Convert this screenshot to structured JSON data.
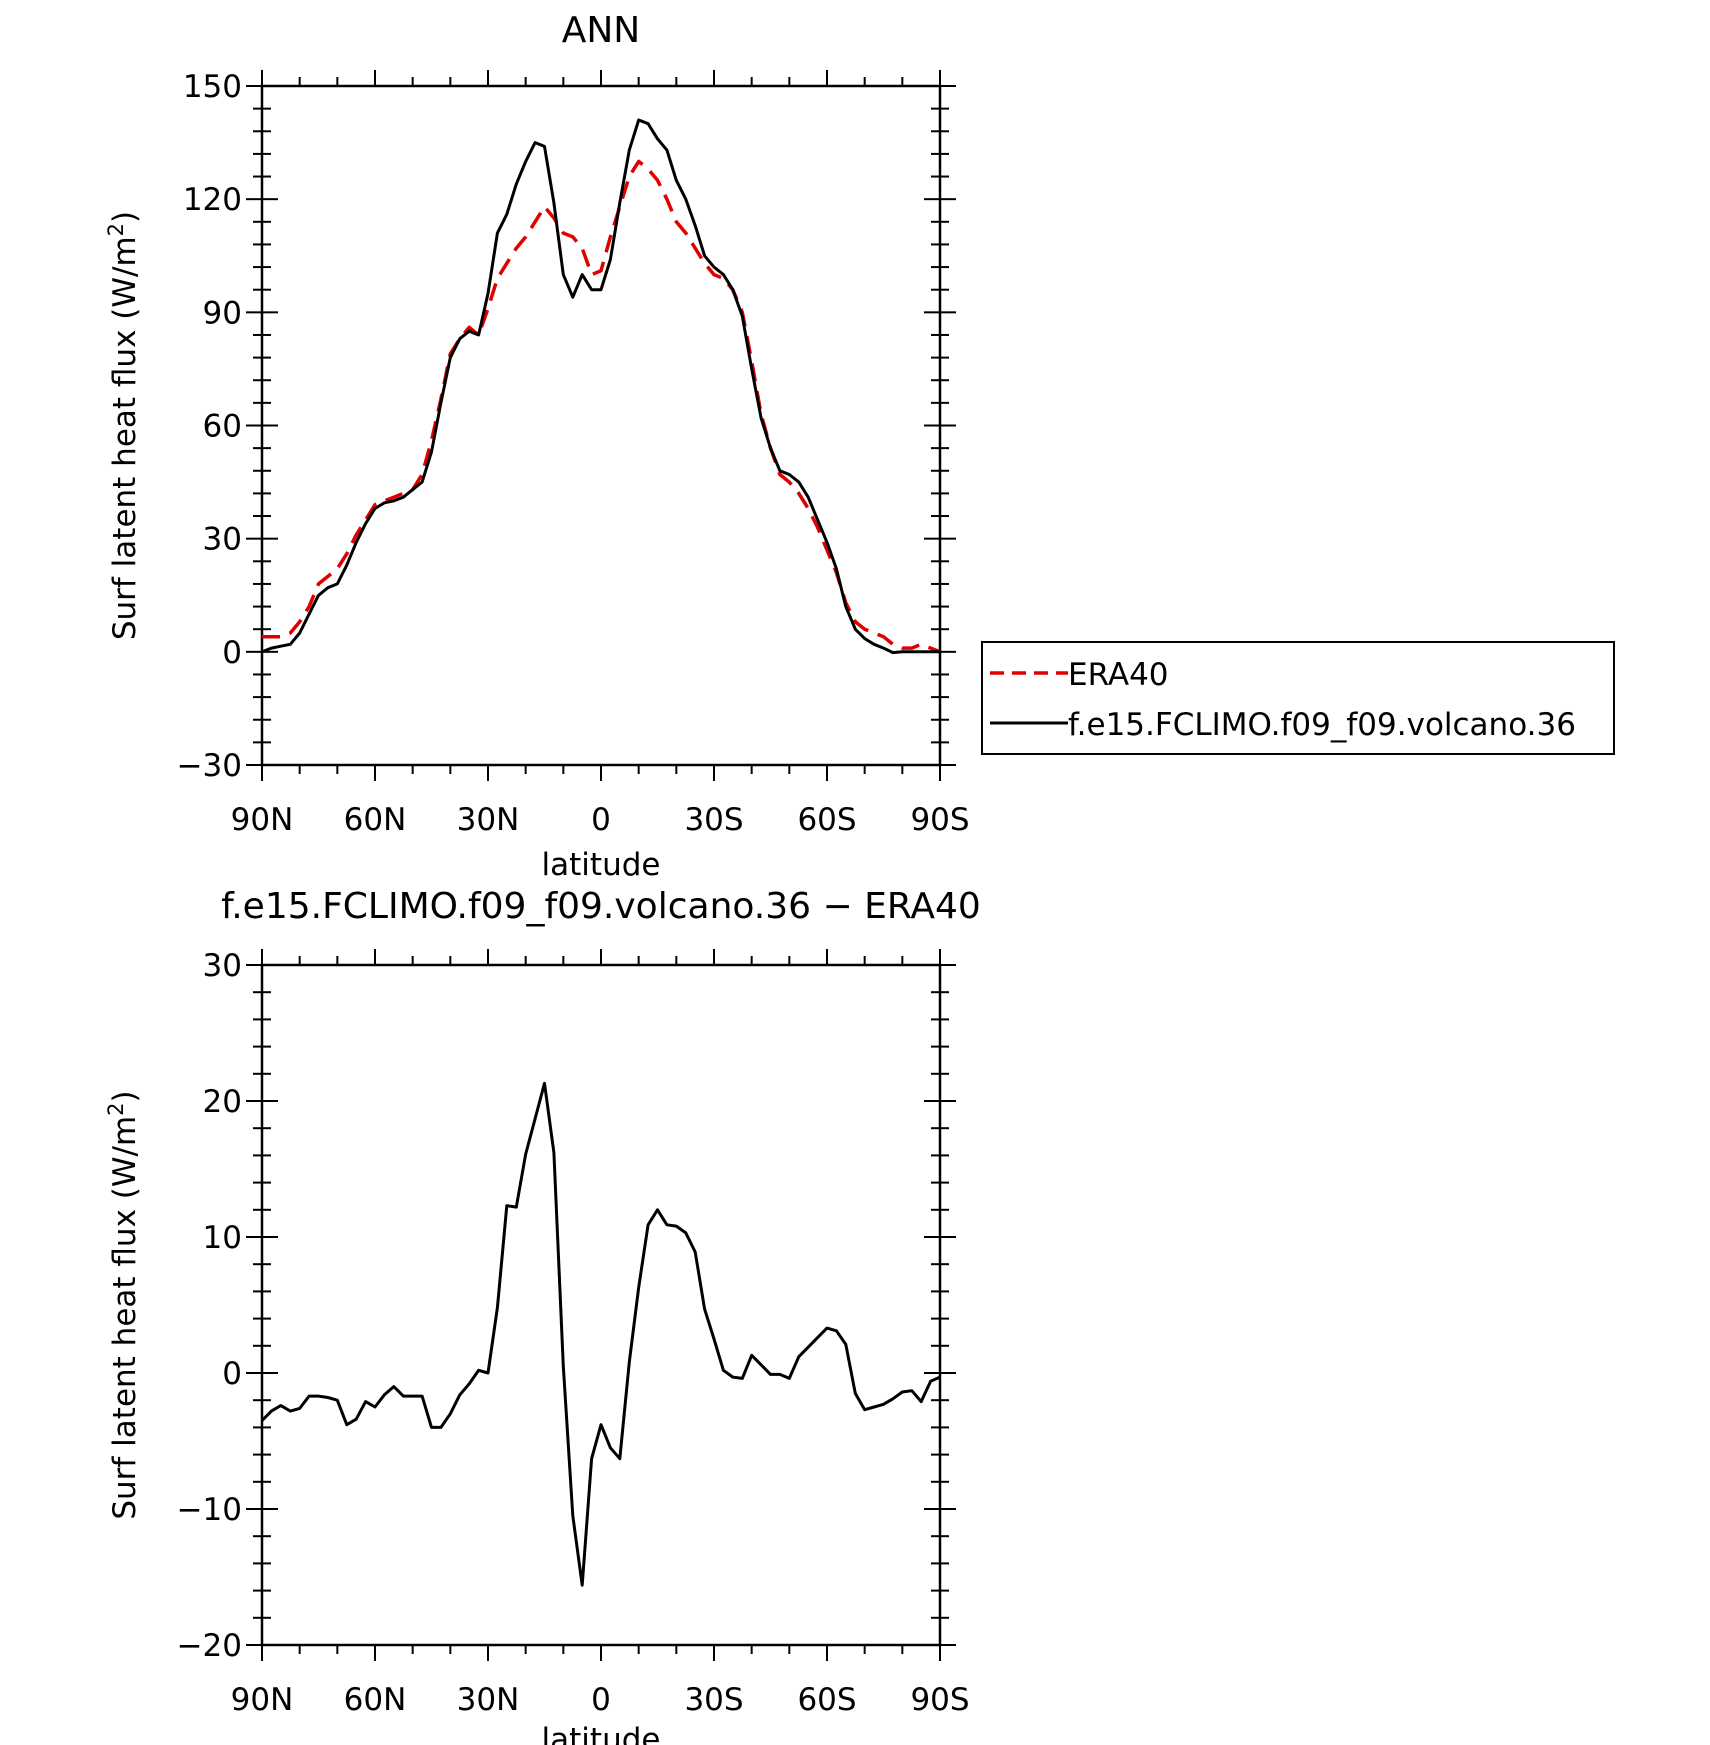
{
  "chart_data": [
    {
      "type": "line",
      "title": "ANN",
      "xlabel": "latitude",
      "ylabel": "Surf latent heat flux (W/m",
      "ylabel_sup": "2",
      "ylabel_close": ")",
      "xlim": [
        90,
        -90
      ],
      "ylim": [
        -30,
        150
      ],
      "xticks": [
        90,
        60,
        30,
        0,
        -30,
        -60,
        -90
      ],
      "xtick_labels": [
        "90N",
        "60N",
        "30N",
        "0",
        "30S",
        "60S",
        "90S"
      ],
      "yticks": [
        -30,
        0,
        30,
        60,
        90,
        120,
        150
      ],
      "ytick_labels": [
        "−30",
        "0",
        "30",
        "60",
        "90",
        "120",
        "150"
      ],
      "legend": {
        "placement": "right",
        "entries": [
          {
            "label": "ERA40",
            "color": "#e00000",
            "dash": "dashed"
          },
          {
            "label": "f.e15.FCLIMO.f09_f09.volcano.36",
            "color": "#000000",
            "dash": "solid"
          }
        ]
      },
      "series": [
        {
          "name": "ERA40",
          "color": "#e00000",
          "dash": "dashed",
          "x": [
            90,
            87.5,
            85,
            82.5,
            80,
            77.5,
            75,
            72.5,
            70,
            67.5,
            65,
            62.5,
            60,
            57.5,
            55,
            52.5,
            50,
            47.5,
            45,
            42.5,
            40,
            37.5,
            35,
            32.5,
            30,
            27.5,
            25,
            22.5,
            20,
            17.5,
            15,
            12.5,
            10,
            7.5,
            5,
            2.5,
            0,
            -2.5,
            -5,
            -7.5,
            -10,
            -12.5,
            -15,
            -17.5,
            -20,
            -22.5,
            -25,
            -27.5,
            -30,
            -32.5,
            -35,
            -37.5,
            -40,
            -42.5,
            -45,
            -47.5,
            -50,
            -52.5,
            -55,
            -57.5,
            -60,
            -62.5,
            -65,
            -67.5,
            -70,
            -72.5,
            -75,
            -77.5,
            -80,
            -82.5,
            -85,
            -87.5,
            -90
          ],
          "y": [
            4,
            4,
            4,
            5,
            8,
            12,
            18,
            20,
            22,
            26,
            31,
            35,
            39,
            40,
            41,
            42,
            43,
            47,
            56,
            67,
            79,
            83,
            86,
            84,
            91,
            99,
            103,
            107,
            110,
            114,
            118,
            115,
            111,
            110,
            107,
            100,
            101,
            110,
            118,
            126,
            130,
            128,
            125,
            120,
            114,
            111,
            107,
            103,
            100,
            99,
            96,
            90,
            77,
            63,
            54,
            47,
            45,
            42,
            38,
            33,
            27,
            21,
            13,
            8,
            6,
            5,
            4,
            2,
            1,
            1,
            2,
            1,
            0
          ]
        },
        {
          "name": "f.e15.FCLIMO.f09_f09.volcano.36",
          "color": "#000000",
          "dash": "solid",
          "x": [
            90,
            87.5,
            85,
            82.5,
            80,
            77.5,
            75,
            72.5,
            70,
            67.5,
            65,
            62.5,
            60,
            57.5,
            55,
            52.5,
            50,
            47.5,
            45,
            42.5,
            40,
            37.5,
            35,
            32.5,
            30,
            27.5,
            25,
            22.5,
            20,
            17.5,
            15,
            12.5,
            10,
            7.5,
            5,
            2.5,
            0,
            -2.5,
            -5,
            -7.5,
            -10,
            -12.5,
            -15,
            -17.5,
            -20,
            -22.5,
            -25,
            -27.5,
            -30,
            -32.5,
            -35,
            -37.5,
            -40,
            -42.5,
            -45,
            -47.5,
            -50,
            -52.5,
            -55,
            -57.5,
            -60,
            -62.5,
            -65,
            -67.5,
            -70,
            -72.5,
            -75,
            -77.5,
            -80,
            -82.5,
            -85,
            -87.5,
            -90
          ],
          "y": [
            0,
            1,
            1.5,
            2,
            5,
            10,
            15,
            17,
            18,
            23,
            29,
            34,
            38,
            39.5,
            40,
            41,
            43,
            45,
            53,
            66,
            78,
            83,
            85,
            84,
            95,
            111,
            116,
            124,
            130,
            135,
            134,
            119,
            100,
            94,
            100,
            96,
            96,
            104,
            119,
            133,
            141,
            140,
            136,
            133,
            125,
            120,
            113,
            105,
            102,
            100,
            96,
            89,
            75,
            62,
            54,
            48,
            47,
            45,
            41,
            35,
            29,
            22,
            12,
            6,
            3.5,
            2,
            1,
            -0.2,
            0,
            0,
            0,
            0,
            0
          ]
        }
      ]
    },
    {
      "type": "line",
      "title": "f.e15.FCLIMO.f09_f09.volcano.36 − ERA40",
      "xlabel": "latitude",
      "ylabel": "Surf latent heat flux (W/m",
      "ylabel_sup": "2",
      "ylabel_close": ")",
      "xlim": [
        90,
        -90
      ],
      "ylim": [
        -20,
        30
      ],
      "xticks": [
        90,
        60,
        30,
        0,
        -30,
        -60,
        -90
      ],
      "xtick_labels": [
        "90N",
        "60N",
        "30N",
        "0",
        "30S",
        "60S",
        "90S"
      ],
      "yticks": [
        -20,
        -10,
        0,
        10,
        20,
        30
      ],
      "ytick_labels": [
        "−20",
        "−10",
        "0",
        "10",
        "20",
        "30"
      ],
      "series": [
        {
          "color": "#000000",
          "dash": "solid",
          "x": [
            90,
            87.5,
            85,
            82.5,
            80,
            77.5,
            75,
            72.5,
            70,
            67.5,
            65,
            62.5,
            60,
            57.5,
            55,
            52.5,
            50,
            47.5,
            45,
            42.5,
            40,
            37.5,
            35,
            32.5,
            30,
            27.5,
            25,
            22.5,
            20,
            17.5,
            15,
            12.5,
            10,
            7.5,
            5,
            2.5,
            0,
            -2.5,
            -5,
            -7.5,
            -10,
            -12.5,
            -15,
            -17.5,
            -20,
            -22.5,
            -25,
            -27.5,
            -30,
            -32.5,
            -35,
            -37.5,
            -40,
            -42.5,
            -45,
            -47.5,
            -50,
            -52.5,
            -55,
            -57.5,
            -60,
            -62.5,
            -65,
            -67.5,
            -70,
            -72.5,
            -75,
            -77.5,
            -80,
            -82.5,
            -85,
            -87.5,
            -90
          ],
          "y": [
            -3.5,
            -2.8,
            -2.4,
            -2.8,
            -2.6,
            -1.7,
            -1.7,
            -1.8,
            -2,
            -3.8,
            -3.4,
            -2.1,
            -2.5,
            -1.6,
            -1,
            -1.7,
            -1.7,
            -1.7,
            -4,
            -4,
            -3,
            -1.6,
            -0.8,
            0.2,
            0,
            4.8,
            12.3,
            12.2,
            16.1,
            18.7,
            21.3,
            16.2,
            0.5,
            -10.5,
            -15.6,
            -6.3,
            -3.8,
            -5.5,
            -6.3,
            0.8,
            6.3,
            10.9,
            12,
            10.9,
            10.8,
            10.3,
            8.9,
            4.7,
            2.5,
            0.2,
            -0.3,
            -0.4,
            1.3,
            0.6,
            -0.1,
            -0.1,
            -0.4,
            1.2,
            1.9,
            2.6,
            3.3,
            3.1,
            2.1,
            -1.5,
            -2.7,
            -2.5,
            -2.3,
            -1.9,
            -1.4,
            -1.3,
            -2.1,
            -0.6,
            -0.3
          ]
        }
      ]
    }
  ]
}
